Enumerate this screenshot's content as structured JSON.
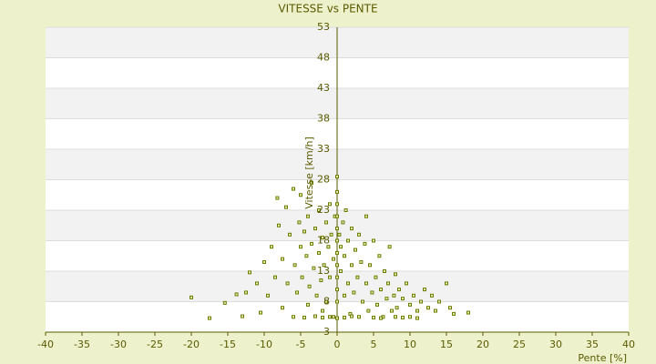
{
  "chart_data": {
    "type": "scatter",
    "title": "VITESSE vs PENTE",
    "x_label": "Pente [%]",
    "y_label": "Vitesse [km/h]",
    "xlim": [
      -40,
      40
    ],
    "xticks": [
      -40,
      -35,
      -30,
      -25,
      -20,
      -15,
      -10,
      -5,
      0,
      5,
      10,
      15,
      20,
      25,
      30,
      35,
      40
    ],
    "ylim": [
      3,
      53
    ],
    "yticks": [
      3,
      8,
      13,
      18,
      23,
      28,
      33,
      38,
      43,
      48,
      53
    ],
    "grid": true,
    "color": "#6b7a00",
    "series": [
      {
        "name": "Vitesse",
        "color": "#6b7a00",
        "x": [
          -20,
          -17.5,
          -15.4,
          -13.8,
          -13,
          -12.5,
          -12,
          -11,
          -10.5,
          -10,
          -9.5,
          -9,
          -8.5,
          -8.2,
          -8,
          -7.5,
          -7.5,
          -7,
          -6.8,
          -6.5,
          -6,
          -6,
          -5.8,
          -5.5,
          -5.2,
          -5,
          -5,
          -4.8,
          -4.5,
          -4.5,
          -4.2,
          -4,
          -4,
          -3.8,
          -3.5,
          -3.5,
          -3.2,
          -3,
          -3,
          -2.8,
          -2.5,
          -2.5,
          -2.2,
          -2,
          -2,
          -1.8,
          -1.5,
          -1.5,
          -1.2,
          -1,
          -1,
          -0.8,
          -0.5,
          -0.5,
          -0.3,
          0,
          0,
          0,
          0,
          0,
          0,
          0,
          0,
          0,
          0,
          0,
          0,
          0.3,
          0.5,
          0.5,
          0.8,
          1,
          1,
          1.2,
          1.5,
          1.5,
          1.8,
          2,
          2,
          2.3,
          2.5,
          2.8,
          3,
          3,
          3.3,
          3.5,
          3.8,
          4,
          4,
          4.3,
          4.5,
          4.8,
          5,
          5,
          5.3,
          5.5,
          5.8,
          6,
          6.3,
          6.5,
          6.8,
          7,
          7.2,
          7.5,
          7.8,
          8,
          8.2,
          8.5,
          9,
          9,
          9.5,
          10,
          10,
          10.5,
          11,
          11.5,
          12,
          12.5,
          13,
          13.5,
          14,
          15,
          15.5,
          16,
          18,
          -1,
          1,
          2,
          -2,
          6,
          8,
          11
        ],
        "values": [
          8.7,
          5.3,
          7.8,
          9.2,
          5.6,
          9.5,
          12.8,
          11,
          6.2,
          14.5,
          9,
          17,
          12,
          25,
          20.5,
          7,
          15,
          23.5,
          11,
          19,
          5.5,
          26.5,
          14,
          9.5,
          21,
          17,
          25.5,
          12,
          5.4,
          19.5,
          15.5,
          7.5,
          22,
          10.5,
          17.5,
          27.5,
          13.5,
          5.6,
          20,
          9,
          16,
          23,
          11.5,
          18.5,
          6.5,
          14,
          21,
          8,
          17,
          12,
          24,
          19,
          15,
          5.5,
          22,
          5.3,
          8,
          10,
          12,
          14,
          16,
          18,
          20,
          22,
          24,
          26,
          28.5,
          19,
          13,
          17,
          21,
          9,
          15.5,
          23,
          11,
          18,
          6,
          14,
          20,
          9.5,
          16.5,
          12,
          5.5,
          19,
          14.5,
          8,
          17.5,
          11,
          22,
          6.5,
          14,
          9.5,
          18,
          5.4,
          12,
          7.5,
          15.5,
          10,
          5.5,
          13,
          8.5,
          11,
          17,
          6.5,
          9,
          12.5,
          7,
          10,
          5.4,
          8.5,
          11,
          7.5,
          5.5,
          9,
          6.5,
          8,
          10,
          7,
          9,
          6.5,
          8,
          11,
          7,
          6,
          6.2,
          5.5,
          5.4,
          5.6,
          5.4,
          5.3,
          5.5,
          5.3
        ]
      }
    ]
  }
}
